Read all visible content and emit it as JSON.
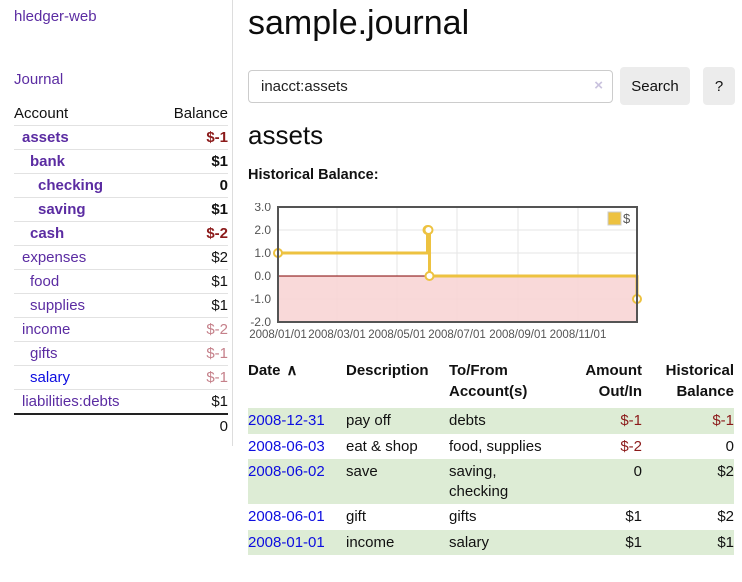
{
  "colors": {
    "link_purple": "#5b2ca2",
    "link_blue": "#0d0de0",
    "negative_strong": "#8b1a1a",
    "negative_dim": "#c5808a",
    "row_stripe_green": "#ddecd5",
    "chart_line_gold": "#edc240",
    "chart_negative_region": "#f8d2d2",
    "chart_zero_line": "#800000",
    "chart_frame": "#545454"
  },
  "sidebar": {
    "title": "hledger-web",
    "journal_link": "Journal",
    "accounts": {
      "header_account": "Account",
      "header_balance": "Balance",
      "rows": [
        {
          "name": "assets",
          "balance": "$-1",
          "depth": 1,
          "strong": true,
          "balance_class": "neg"
        },
        {
          "name": "bank",
          "balance": "$1",
          "depth": 2,
          "strong": true,
          "balance_class": ""
        },
        {
          "name": "checking",
          "balance": "0",
          "depth": 3,
          "strong": true,
          "balance_class": ""
        },
        {
          "name": "saving",
          "balance": "$1",
          "depth": 3,
          "strong": true,
          "balance_class": ""
        },
        {
          "name": "cash",
          "balance": "$-2",
          "depth": 2,
          "strong": true,
          "balance_class": "neg"
        },
        {
          "name": "expenses",
          "balance": "$2",
          "depth": 1,
          "strong": false,
          "balance_class": ""
        },
        {
          "name": "food",
          "balance": "$1",
          "depth": 2,
          "strong": false,
          "balance_class": ""
        },
        {
          "name": "supplies",
          "balance": "$1",
          "depth": 2,
          "strong": false,
          "balance_class": ""
        },
        {
          "name": "income",
          "balance": "$-2",
          "depth": 1,
          "strong": false,
          "balance_class": "negdim"
        },
        {
          "name": "gifts",
          "balance": "$-1",
          "depth": 2,
          "strong": false,
          "balance_class": "negdim"
        },
        {
          "name": "salary",
          "balance": "$-1",
          "depth": 2,
          "strong": false,
          "balance_class": "negdim",
          "link_blue": true
        },
        {
          "name": "liabilities:debts",
          "balance": "$1",
          "depth": 1,
          "strong": false,
          "balance_class": ""
        }
      ],
      "total": "0"
    }
  },
  "main": {
    "title": "sample.journal",
    "search": {
      "value": "inacct:assets",
      "clear_icon": "×",
      "search_button": "Search",
      "help_button": "?"
    },
    "account_heading": "assets",
    "chart_label": "Historical Balance:",
    "register": {
      "headers": {
        "date": "Date",
        "sort": "∧",
        "description": "Description",
        "accounts": "To/From Account(s)",
        "amount": "Amount Out/In",
        "balance": "Historical Balance"
      },
      "rows": [
        {
          "date": "2008-12-31",
          "description": "pay off",
          "accounts": "debts",
          "amount": "$-1",
          "amount_negative": true,
          "balance": "$-1",
          "balance_negative": true
        },
        {
          "date": "2008-06-03",
          "description": "eat & shop",
          "accounts": "food, supplies",
          "amount": "$-2",
          "amount_negative": true,
          "balance": "0",
          "balance_negative": false
        },
        {
          "date": "2008-06-02",
          "description": "save",
          "accounts": "saving, checking",
          "amount": "0",
          "amount_negative": false,
          "balance": "$2",
          "balance_negative": false
        },
        {
          "date": "2008-06-01",
          "description": "gift",
          "accounts": "gifts",
          "amount": "$1",
          "amount_negative": false,
          "balance": "$2",
          "balance_negative": false
        },
        {
          "date": "2008-01-01",
          "description": "income",
          "accounts": "salary",
          "amount": "$1",
          "amount_negative": false,
          "balance": "$1",
          "balance_negative": false
        }
      ]
    }
  },
  "chart_data": {
    "type": "line",
    "title": "Historical Balance:",
    "step": true,
    "x_range": [
      "2008-01-01",
      "2008-12-31"
    ],
    "ylim": [
      -2,
      3
    ],
    "y_ticks": [
      {
        "v": 3,
        "label": "3.0"
      },
      {
        "v": 2,
        "label": "2.0"
      },
      {
        "v": 1,
        "label": "1.0"
      },
      {
        "v": 0,
        "label": "0.0"
      },
      {
        "v": -1,
        "label": "-1.0"
      },
      {
        "v": -2,
        "label": "-2.0"
      }
    ],
    "x_ticks": [
      {
        "date": "2008-01-01",
        "label": "2008/01/01"
      },
      {
        "date": "2008-03-01",
        "label": "2008/03/01"
      },
      {
        "date": "2008-05-01",
        "label": "2008/05/01"
      },
      {
        "date": "2008-07-01",
        "label": "2008/07/01"
      },
      {
        "date": "2008-09-01",
        "label": "2008/09/01"
      },
      {
        "date": "2008-11-01",
        "label": "2008/11/01"
      }
    ],
    "series": [
      {
        "name": "$",
        "color": "#edc240",
        "points": [
          [
            "2008-01-01",
            1
          ],
          [
            "2008-06-01",
            2
          ],
          [
            "2008-06-02",
            2
          ],
          [
            "2008-06-03",
            0
          ],
          [
            "2008-12-31",
            -1
          ]
        ]
      }
    ],
    "legend_position": "top-right",
    "grid": true,
    "negative_region_color": "#f8d2d2",
    "zero_line_color": "#800000",
    "frame_color": "#545454"
  }
}
